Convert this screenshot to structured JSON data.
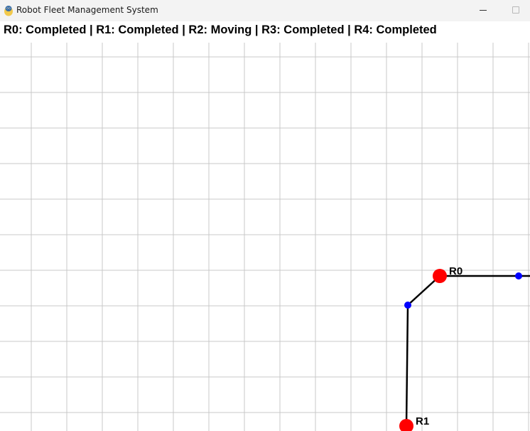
{
  "window": {
    "title": "Robot Fleet Management System",
    "icon": "python-snake-icon"
  },
  "status": {
    "text": "R0: Completed | R1: Completed | R2: Moving | R3: Completed | R4: Completed",
    "robots": [
      {
        "id": "R0",
        "state": "Completed"
      },
      {
        "id": "R1",
        "state": "Completed"
      },
      {
        "id": "R2",
        "state": "Moving"
      },
      {
        "id": "R3",
        "state": "Completed"
      },
      {
        "id": "R4",
        "state": "Completed"
      }
    ]
  },
  "map": {
    "grid_color": "#c8c8c8",
    "path_color": "#000000",
    "waypoint_color": "#0000ff",
    "robot_color": "#ff0000",
    "robots_visible": [
      {
        "label": "R0"
      },
      {
        "label": "R1"
      }
    ]
  }
}
